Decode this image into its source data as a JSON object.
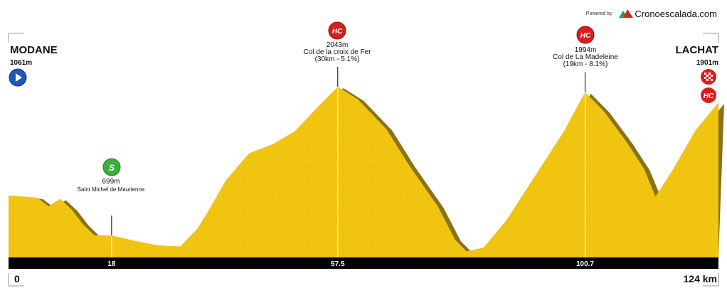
{
  "branding": {
    "powered_by": "Powered by",
    "brand": "Cronoescalada.com"
  },
  "route": {
    "start": {
      "name": "MODANE",
      "altitude": "1061m"
    },
    "finish": {
      "name": "LACHAT",
      "altitude": "1901m"
    }
  },
  "climbs": [
    {
      "category": "HC",
      "altitude": "2043m",
      "name": "Col de la croix de Fer",
      "detail": "(30km - 5.1%)",
      "km": 57.5
    },
    {
      "category": "HC",
      "altitude": "1994m",
      "name": "Col de La Madeleine",
      "detail": "(19km - 8.1%)",
      "km": 100.7
    }
  ],
  "sprint": {
    "category": "S",
    "altitude": "699m",
    "name": "Saint Michel de Maurienne",
    "km": 18
  },
  "finish_badges": {
    "finish_flag": "checkered-flag-icon",
    "category": "HC"
  },
  "axis": {
    "start_label": "0",
    "end_label": "124 km",
    "ticks": [
      "18",
      "57.5",
      "100.7"
    ]
  },
  "colors": {
    "fill": "#f1c40f",
    "shadow": "#8a7216",
    "hc_badge": "#d91e1e",
    "sprint_badge": "#3cae3a",
    "start_badge": "#1d57b3",
    "axis_bar": "#000000"
  },
  "chart_data": {
    "type": "area",
    "xlabel": "",
    "ylabel": "",
    "xlim": [
      0,
      124
    ],
    "ylim": [
      500,
      2300
    ],
    "grid": false,
    "x": [
      0,
      5,
      7,
      9,
      11,
      13,
      15,
      18,
      22,
      26,
      30,
      33,
      35,
      38,
      42,
      46,
      50,
      54,
      57.5,
      61,
      66,
      70,
      75,
      78,
      80,
      83,
      87,
      92,
      97,
      100.7,
      104,
      108,
      111,
      113,
      116,
      120,
      124
    ],
    "y": [
      1061,
      1040,
      962,
      1030,
      935,
      800,
      700,
      699,
      650,
      610,
      600,
      760,
      930,
      1200,
      1440,
      1520,
      1640,
      1860,
      2043,
      1930,
      1660,
      1330,
      960,
      660,
      555,
      590,
      840,
      1240,
      1640,
      1994,
      1820,
      1540,
      1300,
      1050,
      1290,
      1650,
      1901
    ],
    "annotations": [
      "MODANE 1061m",
      "Saint Michel de Maurienne 699m",
      "Col de la croix de Fer 2043m",
      "Col de La Madeleine 1994m",
      "LACHAT 1901m"
    ]
  }
}
